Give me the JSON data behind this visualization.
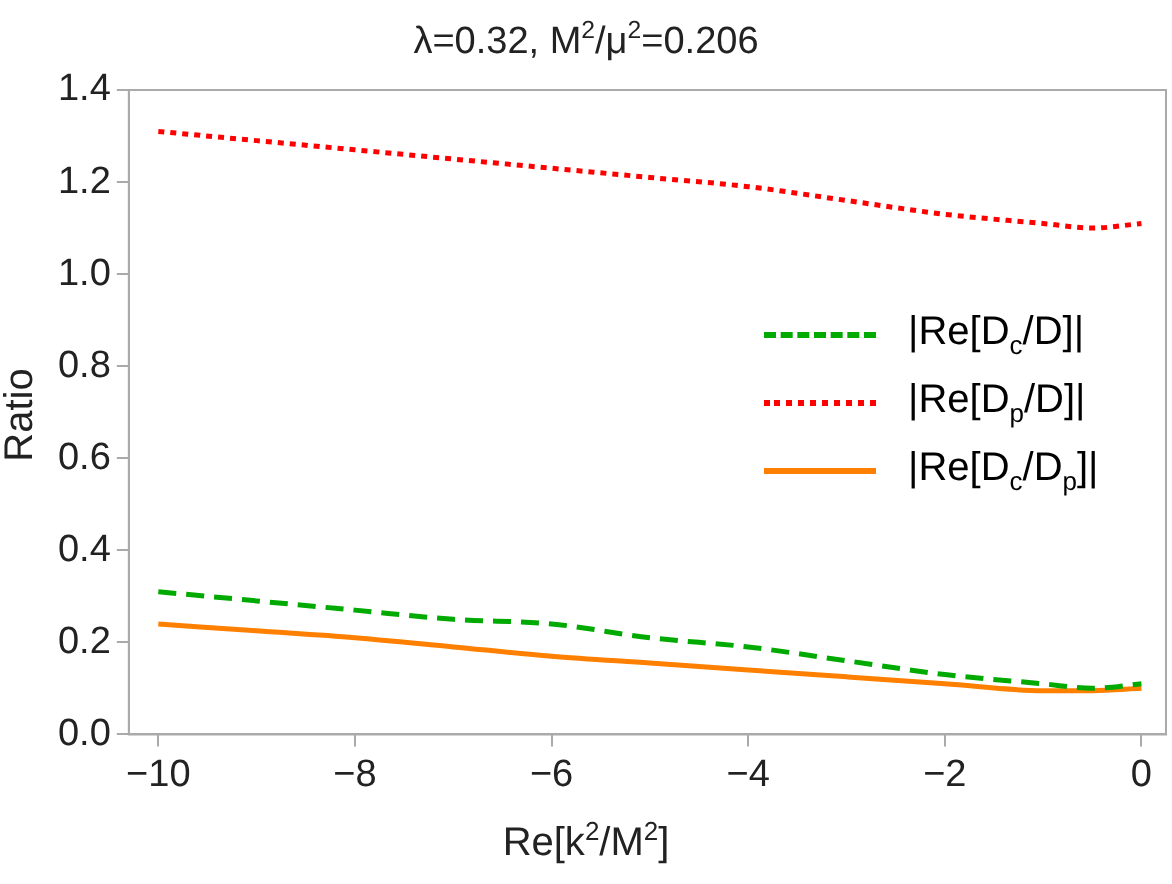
{
  "chart_data": {
    "type": "line",
    "title": "λ=0.32, M$^{2}$/μ$^{2}$=0.206",
    "xlabel": "Re[k$^{2}$/M$^{2}$]",
    "ylabel": "Ratio",
    "x": [
      -10,
      -9,
      -8,
      -7,
      -6,
      -5,
      -4,
      -3,
      -2,
      -1,
      -0.5,
      0
    ],
    "series": [
      {
        "name": "|Re[D$_{c}$/D]|",
        "color": "#00aa00",
        "line_style": "dashed",
        "values": [
          0.31,
          0.29,
          0.27,
          0.25,
          0.24,
          0.21,
          0.19,
          0.16,
          0.13,
          0.11,
          0.1,
          0.11
        ]
      },
      {
        "name": "|Re[D$_{p}$/D]|",
        "color": "#ff0000",
        "line_style": "dotted",
        "values": [
          1.31,
          1.29,
          1.27,
          1.25,
          1.23,
          1.21,
          1.19,
          1.16,
          1.13,
          1.11,
          1.1,
          1.11
        ]
      },
      {
        "name": "|Re[D$_{c}$/D$_{p}$]|",
        "color": "#ff8000",
        "line_style": "solid",
        "values": [
          0.24,
          0.225,
          0.21,
          0.19,
          0.17,
          0.155,
          0.14,
          0.125,
          0.11,
          0.095,
          0.095,
          0.1
        ]
      }
    ],
    "xlim": [
      -10.3,
      0.25
    ],
    "ylim": [
      0,
      1.4
    ],
    "xticks": [
      -10,
      -8,
      -6,
      -4,
      -2,
      0
    ],
    "yticks": [
      {
        "value": 0,
        "label": "0.0"
      },
      0.2,
      0.4,
      0.6,
      0.8,
      {
        "value": 1,
        "label": "1.0"
      },
      1.2,
      1.4
    ],
    "grid": false,
    "legend": "right",
    "marker": "none"
  }
}
